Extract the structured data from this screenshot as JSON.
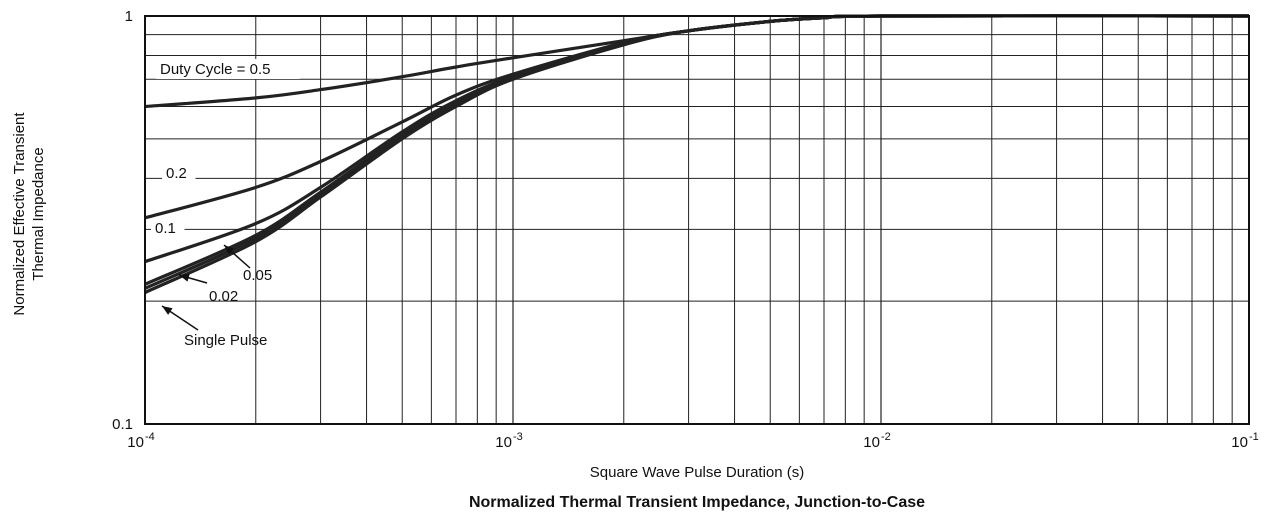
{
  "chart_data": {
    "type": "line",
    "title": "Normalized Thermal Transient Impedance, Junction-to-Case",
    "xlabel": "Square Wave Pulse Duration (s)",
    "ylabel_lines": [
      "Normalized Effective Transient",
      "Thermal Impedance"
    ],
    "x_scale": "log",
    "y_scale": "log",
    "xlim": [
      0.0001,
      0.1
    ],
    "ylim": [
      0.1,
      1
    ],
    "grid": true,
    "x_ticks": [
      {
        "base": "10",
        "exp": "-4",
        "value": 0.0001
      },
      {
        "base": "10",
        "exp": "-3",
        "value": 0.001
      },
      {
        "base": "10",
        "exp": "-2",
        "value": 0.01
      },
      {
        "base": "10",
        "exp": "-1",
        "value": 0.1
      }
    ],
    "y_ticks": [
      {
        "label": "1",
        "value": 1
      },
      {
        "label": "0.1",
        "value": 0.1
      }
    ],
    "series": [
      {
        "name": "Duty Cycle = 0.5",
        "label_text": "Duty Cycle = 0.5",
        "x": [
          0.0001,
          0.0002,
          0.0003,
          0.0005,
          0.0007,
          0.001,
          0.002,
          0.003,
          0.005,
          0.007,
          0.01,
          0.1
        ],
        "y": [
          0.6,
          0.63,
          0.66,
          0.71,
          0.75,
          0.79,
          0.87,
          0.92,
          0.97,
          0.99,
          1.0,
          1.0
        ]
      },
      {
        "name": "0.2",
        "label_text": "0.2",
        "x": [
          0.0001,
          0.0002,
          0.0003,
          0.0005,
          0.0007,
          0.001,
          0.002,
          0.003,
          0.005,
          0.007,
          0.01,
          0.1
        ],
        "y": [
          0.32,
          0.38,
          0.44,
          0.55,
          0.64,
          0.72,
          0.86,
          0.92,
          0.97,
          0.99,
          1.0,
          1.0
        ]
      },
      {
        "name": "0.1",
        "label_text": "0.1",
        "x": [
          0.0001,
          0.0002,
          0.0003,
          0.0005,
          0.0007,
          0.001,
          0.002,
          0.003,
          0.005,
          0.007,
          0.01,
          0.1
        ],
        "y": [
          0.25,
          0.31,
          0.38,
          0.52,
          0.62,
          0.71,
          0.86,
          0.92,
          0.97,
          0.99,
          1.0,
          1.0
        ]
      },
      {
        "name": "0.05",
        "label_text": "0.05",
        "x": [
          0.0001,
          0.0002,
          0.0003,
          0.0005,
          0.0007,
          0.001,
          0.002,
          0.003,
          0.005,
          0.007,
          0.01,
          0.1
        ],
        "y": [
          0.22,
          0.29,
          0.37,
          0.51,
          0.61,
          0.71,
          0.86,
          0.92,
          0.97,
          0.99,
          1.0,
          1.0
        ]
      },
      {
        "name": "0.02",
        "label_text": "0.02",
        "x": [
          0.0001,
          0.0002,
          0.0003,
          0.0005,
          0.0007,
          0.001,
          0.002,
          0.003,
          0.005,
          0.007,
          0.01,
          0.1
        ],
        "y": [
          0.215,
          0.285,
          0.365,
          0.505,
          0.605,
          0.705,
          0.855,
          0.92,
          0.97,
          0.99,
          1.0,
          1.0
        ]
      },
      {
        "name": "Single Pulse",
        "label_text": "Single Pulse",
        "x": [
          0.0001,
          0.0002,
          0.0003,
          0.0005,
          0.0007,
          0.001,
          0.002,
          0.003,
          0.005,
          0.007,
          0.01,
          0.1
        ],
        "y": [
          0.21,
          0.28,
          0.36,
          0.5,
          0.6,
          0.7,
          0.85,
          0.92,
          0.97,
          0.99,
          1.0,
          1.0
        ]
      }
    ],
    "annotations": [
      {
        "text": "Duty Cycle = 0.5",
        "series": "Duty Cycle = 0.5"
      },
      {
        "text": "0.2",
        "series": "0.2"
      },
      {
        "text": "0.1",
        "series": "0.1"
      },
      {
        "text": "0.05",
        "series": "0.05",
        "arrow": true
      },
      {
        "text": "0.02",
        "series": "0.02",
        "arrow": true
      },
      {
        "text": "Single Pulse",
        "series": "Single Pulse",
        "arrow": true
      }
    ]
  }
}
